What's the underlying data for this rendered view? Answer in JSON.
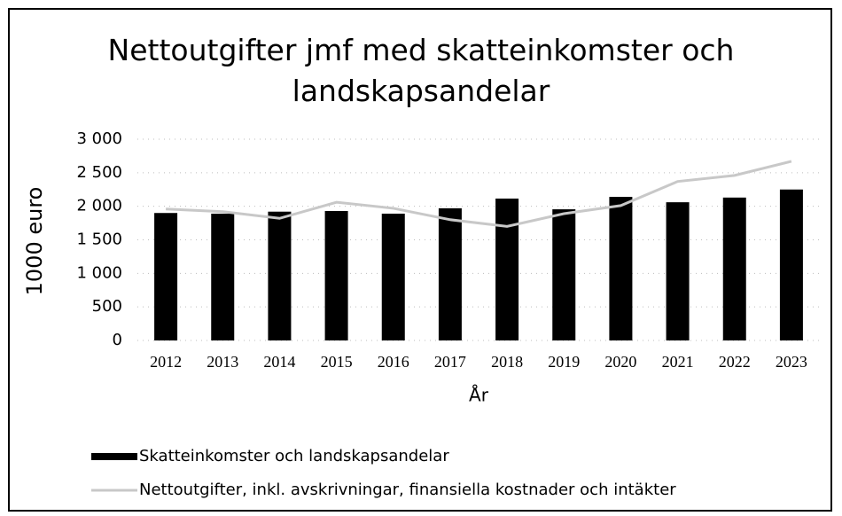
{
  "chart_data": {
    "type": "bar",
    "title": "Nettoutgifter jmf med skatteinkomster och landskapsandelar",
    "y_label": "1000 euro",
    "x_label": "År",
    "categories": [
      "2012",
      "2013",
      "2014",
      "2015",
      "2016",
      "2017",
      "2018",
      "2019",
      "2020",
      "2021",
      "2022",
      "2023"
    ],
    "series": [
      {
        "name": "Skatteinkomster och landskapsandelar",
        "type": "bar",
        "color": "#000000",
        "values": [
          1900,
          1890,
          1920,
          1930,
          1890,
          1970,
          2115,
          1955,
          2140,
          2060,
          2130,
          2250
        ]
      },
      {
        "name": "Nettoutgifter, inkl. avskrivningar, finansiella kostnader och intäkter",
        "type": "line",
        "color": "#c8c8c8",
        "values": [
          1960,
          1920,
          1820,
          2060,
          1970,
          1800,
          1700,
          1890,
          2010,
          2370,
          2460,
          2670
        ]
      }
    ],
    "ylim": [
      0,
      3000
    ],
    "yticks": [
      0,
      500,
      {
        "value": 1000,
        "label": "1 000"
      },
      {
        "value": 1500,
        "label": "1 500"
      },
      {
        "value": 2000,
        "label": "2 000"
      },
      {
        "value": 2500,
        "label": "2 500"
      },
      {
        "value": 3000,
        "label": "3 000"
      }
    ],
    "grid": true,
    "legend": "bottom"
  }
}
